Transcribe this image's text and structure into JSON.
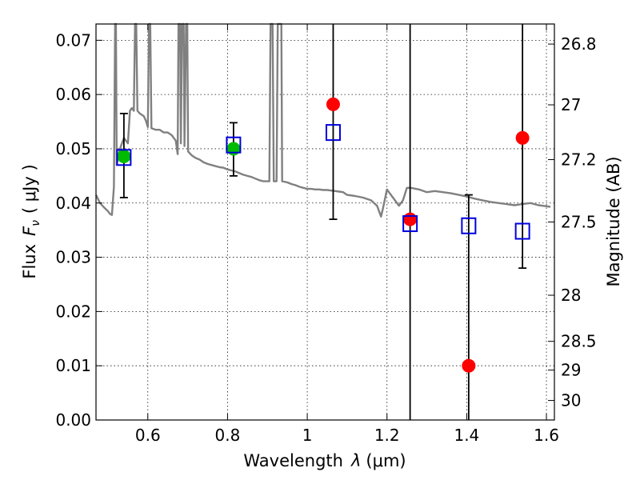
{
  "chart_data": {
    "type": "scatter",
    "xlabel_prefix": "Wavelength",
    "xlabel_var": "λ",
    "xlabel_unit": "(μm)",
    "ylabel_prefix": "Flux",
    "ylabel_var": "F",
    "ylabel_sub": "ν",
    "ylabel_unit": "( μJy )",
    "y2label": "Magnitude (AB)",
    "xlim": [
      0.47,
      1.62
    ],
    "ylim": [
      0,
      0.073
    ],
    "grid": true,
    "x_ticks": [
      0.6,
      0.8,
      1.0,
      1.2,
      1.4,
      1.6
    ],
    "x_tick_labels": [
      "0.6",
      "0.8",
      "1",
      "1.2",
      "1.4",
      "1.6"
    ],
    "y_ticks": [
      0.0,
      0.01,
      0.02,
      0.03,
      0.04,
      0.05,
      0.06,
      0.07
    ],
    "y_tick_labels": [
      "0.00",
      "0.01",
      "0.02",
      "0.03",
      "0.04",
      "0.05",
      "0.06",
      "0.07"
    ],
    "y2_ticks": [
      {
        "label": "26.8",
        "flux": 0.0693
      },
      {
        "label": "27",
        "flux": 0.0581
      },
      {
        "label": "27.2",
        "flux": 0.048
      },
      {
        "label": "27.5",
        "flux": 0.0365
      },
      {
        "label": "28",
        "flux": 0.023
      },
      {
        "label": "28.5",
        "flux": 0.0145
      },
      {
        "label": "29",
        "flux": 0.0092
      },
      {
        "label": "30",
        "flux": 0.0036
      }
    ],
    "model_color": "#808080",
    "model_spectrum": [
      [
        0.47,
        0.0415
      ],
      [
        0.48,
        0.04
      ],
      [
        0.49,
        0.0392
      ],
      [
        0.5,
        0.0385
      ],
      [
        0.505,
        0.038
      ],
      [
        0.51,
        0.0378
      ],
      [
        0.515,
        0.043
      ],
      [
        0.518,
        0.0735
      ],
      [
        0.52,
        0.0735
      ],
      [
        0.522,
        0.047
      ],
      [
        0.53,
        0.05
      ],
      [
        0.54,
        0.052
      ],
      [
        0.55,
        0.051
      ],
      [
        0.555,
        0.057
      ],
      [
        0.56,
        0.0575
      ],
      [
        0.565,
        0.057
      ],
      [
        0.568,
        0.0735
      ],
      [
        0.571,
        0.0735
      ],
      [
        0.574,
        0.057
      ],
      [
        0.58,
        0.0565
      ],
      [
        0.59,
        0.056
      ],
      [
        0.595,
        0.0552
      ],
      [
        0.6,
        0.054
      ],
      [
        0.603,
        0.0735
      ],
      [
        0.606,
        0.0735
      ],
      [
        0.609,
        0.0538
      ],
      [
        0.62,
        0.0535
      ],
      [
        0.63,
        0.0535
      ],
      [
        0.64,
        0.053
      ],
      [
        0.65,
        0.053
      ],
      [
        0.66,
        0.0525
      ],
      [
        0.67,
        0.0515
      ],
      [
        0.675,
        0.049
      ],
      [
        0.677,
        0.0735
      ],
      [
        0.681,
        0.0735
      ],
      [
        0.683,
        0.051
      ],
      [
        0.686,
        0.0735
      ],
      [
        0.69,
        0.0735
      ],
      [
        0.692,
        0.0505
      ],
      [
        0.696,
        0.0735
      ],
      [
        0.699,
        0.0735
      ],
      [
        0.701,
        0.0495
      ],
      [
        0.71,
        0.0488
      ],
      [
        0.72,
        0.0483
      ],
      [
        0.73,
        0.048
      ],
      [
        0.74,
        0.0475
      ],
      [
        0.75,
        0.0472
      ],
      [
        0.76,
        0.047
      ],
      [
        0.77,
        0.0468
      ],
      [
        0.78,
        0.0466
      ],
      [
        0.79,
        0.0465
      ],
      [
        0.8,
        0.0462
      ],
      [
        0.81,
        0.046
      ],
      [
        0.82,
        0.0458
      ],
      [
        0.83,
        0.0455
      ],
      [
        0.84,
        0.0452
      ],
      [
        0.85,
        0.045
      ],
      [
        0.86,
        0.0448
      ],
      [
        0.87,
        0.0445
      ],
      [
        0.88,
        0.0442
      ],
      [
        0.89,
        0.044
      ],
      [
        0.9,
        0.044
      ],
      [
        0.905,
        0.044
      ],
      [
        0.908,
        0.0735
      ],
      [
        0.913,
        0.0735
      ],
      [
        0.916,
        0.044
      ],
      [
        0.923,
        0.044
      ],
      [
        0.926,
        0.0735
      ],
      [
        0.935,
        0.0735
      ],
      [
        0.937,
        0.044
      ],
      [
        0.95,
        0.0438
      ],
      [
        0.96,
        0.0435
      ],
      [
        0.97,
        0.0433
      ],
      [
        0.98,
        0.043
      ],
      [
        0.99,
        0.0428
      ],
      [
        1.0,
        0.0426
      ],
      [
        1.01,
        0.0426
      ],
      [
        1.02,
        0.0425
      ],
      [
        1.03,
        0.0425
      ],
      [
        1.04,
        0.0424
      ],
      [
        1.05,
        0.0424
      ],
      [
        1.06,
        0.0423
      ],
      [
        1.07,
        0.0422
      ],
      [
        1.08,
        0.0421
      ],
      [
        1.09,
        0.042
      ],
      [
        1.1,
        0.0415
      ],
      [
        1.12,
        0.0413
      ],
      [
        1.14,
        0.041
      ],
      [
        1.16,
        0.0405
      ],
      [
        1.175,
        0.0395
      ],
      [
        1.185,
        0.0375
      ],
      [
        1.19,
        0.039
      ],
      [
        1.2,
        0.0425
      ],
      [
        1.215,
        0.041
      ],
      [
        1.23,
        0.0395
      ],
      [
        1.24,
        0.0405
      ],
      [
        1.25,
        0.0428
      ],
      [
        1.26,
        0.0428
      ],
      [
        1.28,
        0.0425
      ],
      [
        1.3,
        0.042
      ],
      [
        1.32,
        0.0422
      ],
      [
        1.34,
        0.042
      ],
      [
        1.36,
        0.0418
      ],
      [
        1.38,
        0.0415
      ],
      [
        1.4,
        0.0412
      ],
      [
        1.42,
        0.0408
      ],
      [
        1.44,
        0.0405
      ],
      [
        1.46,
        0.0402
      ],
      [
        1.48,
        0.04
      ],
      [
        1.5,
        0.0398
      ],
      [
        1.52,
        0.0396
      ],
      [
        1.54,
        0.0398
      ],
      [
        1.56,
        0.04
      ],
      [
        1.58,
        0.0396
      ],
      [
        1.6,
        0.0394
      ],
      [
        1.61,
        0.0393
      ]
    ],
    "series": [
      {
        "name": "observed-detections",
        "marker": "circle",
        "color": "#00bb00",
        "points": [
          {
            "x": 0.54,
            "y": 0.0486,
            "yerr_low": 0.041,
            "yerr_high": 0.0565
          },
          {
            "x": 0.815,
            "y": 0.05,
            "yerr_low": 0.045,
            "yerr_high": 0.0548
          }
        ]
      },
      {
        "name": "observed-marginal",
        "marker": "circle",
        "color": "#ff0000",
        "points": [
          {
            "x": 1.065,
            "y": 0.0582,
            "yerr_low": 0.037,
            "yerr_high": 0.073
          },
          {
            "x": 1.258,
            "y": 0.037,
            "yerr_low": 0.0,
            "yerr_high": 0.073
          },
          {
            "x": 1.405,
            "y": 0.01,
            "yerr_low": 0.0,
            "yerr_high": 0.0415
          },
          {
            "x": 1.54,
            "y": 0.052,
            "yerr_low": 0.028,
            "yerr_high": 0.073
          }
        ]
      },
      {
        "name": "model-photometry",
        "marker": "square-open",
        "color": "#0000dd",
        "points": [
          {
            "x": 0.54,
            "y": 0.0484
          },
          {
            "x": 0.815,
            "y": 0.0507
          },
          {
            "x": 1.065,
            "y": 0.053
          },
          {
            "x": 1.258,
            "y": 0.0362
          },
          {
            "x": 1.405,
            "y": 0.0358
          },
          {
            "x": 1.54,
            "y": 0.0348
          }
        ]
      }
    ]
  }
}
